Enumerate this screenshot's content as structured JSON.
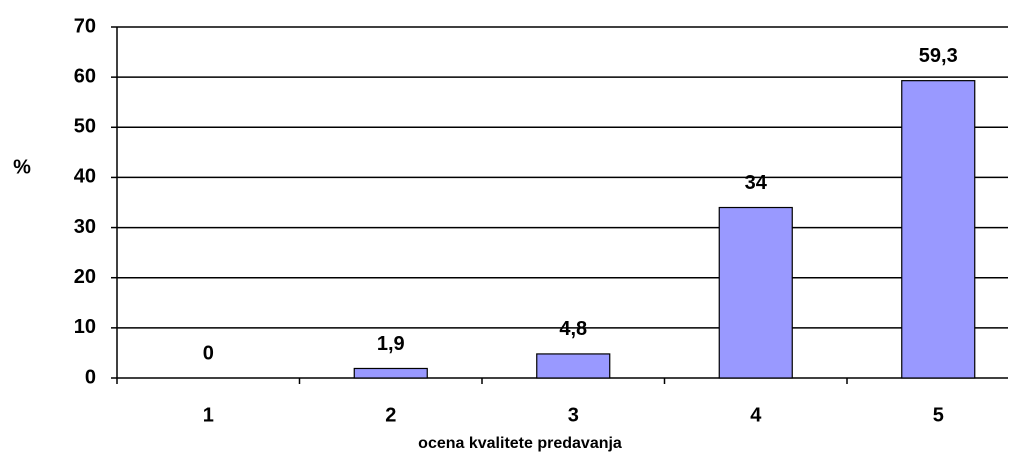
{
  "chart_data": {
    "type": "bar",
    "categories": [
      "1",
      "2",
      "3",
      "4",
      "5"
    ],
    "values": [
      0,
      1.9,
      4.8,
      34,
      59.3
    ],
    "value_labels": [
      "0",
      "1,9",
      "4,8",
      "34",
      "59,3"
    ],
    "color": "#9999ff",
    "ylim": [
      0,
      70
    ],
    "yticks": [
      0,
      10,
      20,
      30,
      40,
      50,
      60,
      70
    ],
    "grid": true,
    "ylabel": "%",
    "xlabel": "ocena kvalitete predavanja"
  }
}
